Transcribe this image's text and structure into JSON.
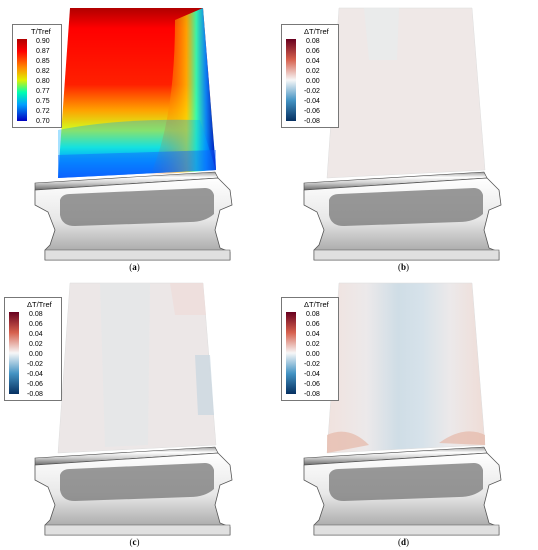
{
  "panels": [
    {
      "id": "a",
      "caption": "a",
      "legend": {
        "title": "T/Tref",
        "ticks": [
          "0.90",
          "0.87",
          "0.85",
          "0.82",
          "0.80",
          "0.77",
          "0.75",
          "0.72",
          "0.70"
        ],
        "colormap": "jet"
      }
    },
    {
      "id": "b",
      "caption": "b",
      "legend": {
        "title": "ΔT/Tref",
        "ticks": [
          "0.08",
          "0.06",
          "0.04",
          "0.02",
          "0.00",
          "-0.02",
          "-0.04",
          "-0.06",
          "-0.08"
        ],
        "colormap": "diverging red-white-blue"
      }
    },
    {
      "id": "c",
      "caption": "c",
      "legend": {
        "title": "ΔT/Tref",
        "ticks": [
          "0.08",
          "0.06",
          "0.04",
          "0.02",
          "0.00",
          "-0.02",
          "-0.04",
          "-0.06",
          "-0.08"
        ],
        "colormap": "diverging red-white-blue"
      }
    },
    {
      "id": "d",
      "caption": "d",
      "legend": {
        "title": "ΔT/Tref",
        "ticks": [
          "0.08",
          "0.06",
          "0.04",
          "0.02",
          "0.00",
          "-0.02",
          "-0.04",
          "-0.06",
          "-0.08"
        ],
        "colormap": "diverging red-white-blue"
      }
    }
  ],
  "colors": {
    "jet": [
      "#800000",
      "#ff0000",
      "#ffff00",
      "#00ffff",
      "#0000ff",
      "#000080"
    ],
    "diverging": [
      "#67001f",
      "#d6604d",
      "#f7f7f7",
      "#4393c3",
      "#053061"
    ]
  }
}
